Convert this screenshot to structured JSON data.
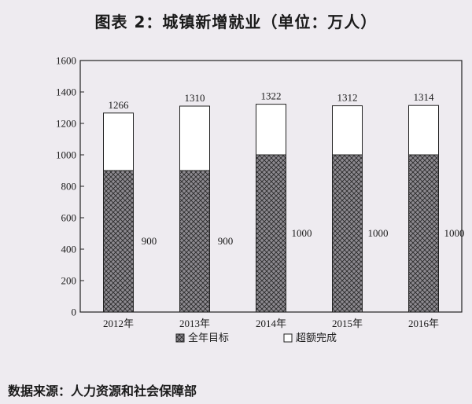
{
  "title": "图表 2：城镇新增就业（单位：万人）",
  "source": "数据来源：人力资源和社会保障部",
  "colors": {
    "background": "#eeebf0",
    "frame": "#222222",
    "target_fill": "#8d8a90",
    "target_hatch": "#2a2a2a",
    "completed_fill": "#ffffff"
  },
  "chart_data": {
    "type": "bar",
    "stacked": true,
    "categories": [
      "2012年",
      "2013年",
      "2014年",
      "2015年",
      "2016年"
    ],
    "series": [
      {
        "name": "全年目标",
        "values": [
          900,
          900,
          1000,
          1000,
          1000
        ],
        "pattern": "crosshatch"
      },
      {
        "name": "超额完成",
        "values": [
          366,
          410,
          322,
          312,
          314
        ],
        "pattern": "none"
      }
    ],
    "totals": [
      1266,
      1310,
      1322,
      1312,
      1314
    ],
    "total_labels": [
      "1266",
      "1310",
      "1322",
      "1312",
      "1314"
    ],
    "target_labels": [
      "900",
      "900",
      "1000",
      "1000",
      "1000"
    ],
    "ylim": [
      0,
      1600
    ],
    "yticks": [
      0,
      200,
      400,
      600,
      800,
      1000,
      1200,
      1400,
      1600
    ],
    "ytick_labels": [
      "0",
      "200",
      "400",
      "600",
      "800",
      "1000",
      "1200",
      "1400",
      "1600"
    ],
    "legend": {
      "position": "bottom",
      "entries": [
        "全年目标",
        "超额完成"
      ]
    },
    "grid": false
  }
}
